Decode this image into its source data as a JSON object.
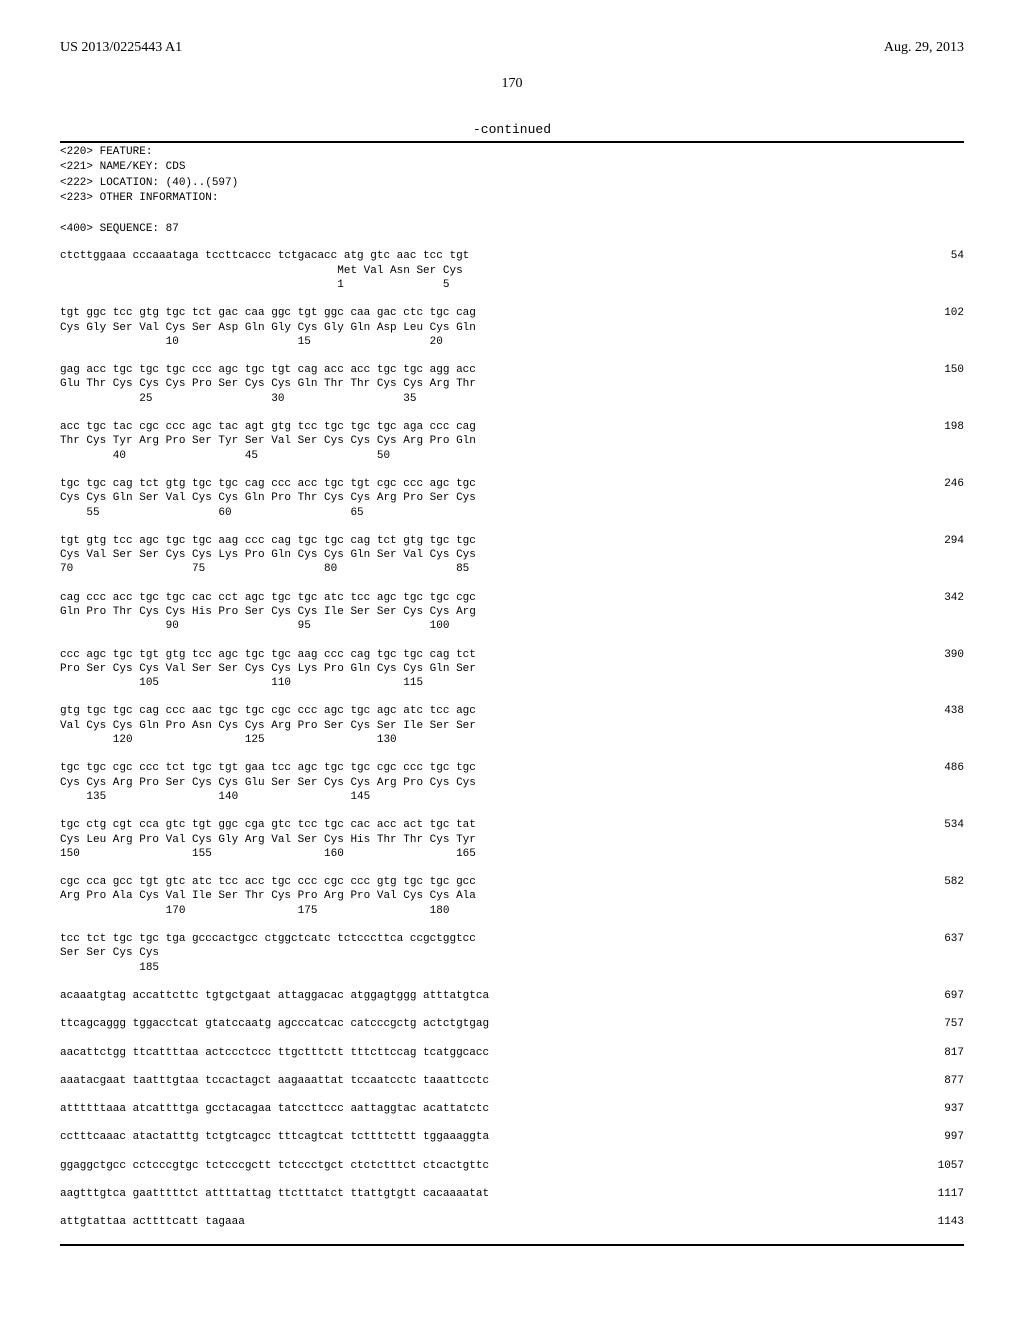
{
  "header": {
    "patent_number": "US 2013/0225443 A1",
    "date": "Aug. 29, 2013"
  },
  "page_number": "170",
  "continued_label": "-continued",
  "annotations": [
    "<220> FEATURE:",
    "<221> NAME/KEY: CDS",
    "<222> LOCATION: (40)..(597)",
    "<223> OTHER INFORMATION:",
    "",
    "<400> SEQUENCE: 87"
  ],
  "sequence_groups": [
    {
      "lines": [
        {
          "seq": "ctcttggaaa cccaaataga tccttcaccc tctgacacc atg gtc aac tcc tgt",
          "pos": "54"
        },
        {
          "seq": "                                          Met Val Asn Ser Cys",
          "pos": ""
        },
        {
          "seq": "                                          1               5",
          "pos": ""
        }
      ]
    },
    {
      "lines": [
        {
          "seq": "tgt ggc tcc gtg tgc tct gac caa ggc tgt ggc caa gac ctc tgc cag",
          "pos": "102"
        },
        {
          "seq": "Cys Gly Ser Val Cys Ser Asp Gln Gly Cys Gly Gln Asp Leu Cys Gln",
          "pos": ""
        },
        {
          "seq": "                10                  15                  20",
          "pos": ""
        }
      ]
    },
    {
      "lines": [
        {
          "seq": "gag acc tgc tgc tgc ccc agc tgc tgt cag acc acc tgc tgc agg acc",
          "pos": "150"
        },
        {
          "seq": "Glu Thr Cys Cys Cys Pro Ser Cys Cys Gln Thr Thr Cys Cys Arg Thr",
          "pos": ""
        },
        {
          "seq": "            25                  30                  35",
          "pos": ""
        }
      ]
    },
    {
      "lines": [
        {
          "seq": "acc tgc tac cgc ccc agc tac agt gtg tcc tgc tgc tgc aga ccc cag",
          "pos": "198"
        },
        {
          "seq": "Thr Cys Tyr Arg Pro Ser Tyr Ser Val Ser Cys Cys Cys Arg Pro Gln",
          "pos": ""
        },
        {
          "seq": "        40                  45                  50",
          "pos": ""
        }
      ]
    },
    {
      "lines": [
        {
          "seq": "tgc tgc cag tct gtg tgc tgc cag ccc acc tgc tgt cgc ccc agc tgc",
          "pos": "246"
        },
        {
          "seq": "Cys Cys Gln Ser Val Cys Cys Gln Pro Thr Cys Cys Arg Pro Ser Cys",
          "pos": ""
        },
        {
          "seq": "    55                  60                  65",
          "pos": ""
        }
      ]
    },
    {
      "lines": [
        {
          "seq": "tgt gtg tcc agc tgc tgc aag ccc cag tgc tgc cag tct gtg tgc tgc",
          "pos": "294"
        },
        {
          "seq": "Cys Val Ser Ser Cys Cys Lys Pro Gln Cys Cys Gln Ser Val Cys Cys",
          "pos": ""
        },
        {
          "seq": "70                  75                  80                  85",
          "pos": ""
        }
      ]
    },
    {
      "lines": [
        {
          "seq": "cag ccc acc tgc tgc cac cct agc tgc tgc atc tcc agc tgc tgc cgc",
          "pos": "342"
        },
        {
          "seq": "Gln Pro Thr Cys Cys His Pro Ser Cys Cys Ile Ser Ser Cys Cys Arg",
          "pos": ""
        },
        {
          "seq": "                90                  95                  100",
          "pos": ""
        }
      ]
    },
    {
      "lines": [
        {
          "seq": "ccc agc tgc tgt gtg tcc agc tgc tgc aag ccc cag tgc tgc cag tct",
          "pos": "390"
        },
        {
          "seq": "Pro Ser Cys Cys Val Ser Ser Cys Cys Lys Pro Gln Cys Cys Gln Ser",
          "pos": ""
        },
        {
          "seq": "            105                 110                 115",
          "pos": ""
        }
      ]
    },
    {
      "lines": [
        {
          "seq": "gtg tgc tgc cag ccc aac tgc tgc cgc ccc agc tgc agc atc tcc agc",
          "pos": "438"
        },
        {
          "seq": "Val Cys Cys Gln Pro Asn Cys Cys Arg Pro Ser Cys Ser Ile Ser Ser",
          "pos": ""
        },
        {
          "seq": "        120                 125                 130",
          "pos": ""
        }
      ]
    },
    {
      "lines": [
        {
          "seq": "tgc tgc cgc ccc tct tgc tgt gaa tcc agc tgc tgc cgc ccc tgc tgc",
          "pos": "486"
        },
        {
          "seq": "Cys Cys Arg Pro Ser Cys Cys Glu Ser Ser Cys Cys Arg Pro Cys Cys",
          "pos": ""
        },
        {
          "seq": "    135                 140                 145",
          "pos": ""
        }
      ]
    },
    {
      "lines": [
        {
          "seq": "tgc ctg cgt cca gtc tgt ggc cga gtc tcc tgc cac acc act tgc tat",
          "pos": "534"
        },
        {
          "seq": "Cys Leu Arg Pro Val Cys Gly Arg Val Ser Cys His Thr Thr Cys Tyr",
          "pos": ""
        },
        {
          "seq": "150                 155                 160                 165",
          "pos": ""
        }
      ]
    },
    {
      "lines": [
        {
          "seq": "cgc cca gcc tgt gtc atc tcc acc tgc ccc cgc ccc gtg tgc tgc gcc",
          "pos": "582"
        },
        {
          "seq": "Arg Pro Ala Cys Val Ile Ser Thr Cys Pro Arg Pro Val Cys Cys Ala",
          "pos": ""
        },
        {
          "seq": "                170                 175                 180",
          "pos": ""
        }
      ]
    },
    {
      "lines": [
        {
          "seq": "tcc tct tgc tgc tga gcccactgcc ctggctcatc tctcccttca ccgctggtcc",
          "pos": "637"
        },
        {
          "seq": "Ser Ser Cys Cys",
          "pos": ""
        },
        {
          "seq": "            185",
          "pos": ""
        }
      ]
    }
  ],
  "trailing_lines": [
    {
      "seq": "acaaatgtag accattcttc tgtgctgaat attaggacac atggagtggg atttatgtca",
      "pos": "697"
    },
    {
      "seq": "ttcagcaggg tggacctcat gtatccaatg agcccatcac catcccgctg actctgtgag",
      "pos": "757"
    },
    {
      "seq": "aacattctgg ttcattttaa actccctccc ttgctttctt tttcttccag tcatggcacc",
      "pos": "817"
    },
    {
      "seq": "aaatacgaat taatttgtaa tccactagct aagaaattat tccaatcctc taaattcctc",
      "pos": "877"
    },
    {
      "seq": "attttttaaa atcattttga gcctacagaa tatccttccc aattaggtac acattatctc",
      "pos": "937"
    },
    {
      "seq": "cctttcaaac atactatttg tctgtcagcc tttcagtcat tcttttcttt tggaaaggta",
      "pos": "997"
    },
    {
      "seq": "ggaggctgcc cctcccgtgc tctcccgctt tctccctgct ctctctttct ctcactgttc",
      "pos": "1057"
    },
    {
      "seq": "aagtttgtca gaatttttct attttattag ttctttatct ttattgtgtt cacaaaatat",
      "pos": "1117"
    },
    {
      "seq": "attgtattaa acttttcatt tagaaa",
      "pos": "1143"
    }
  ]
}
